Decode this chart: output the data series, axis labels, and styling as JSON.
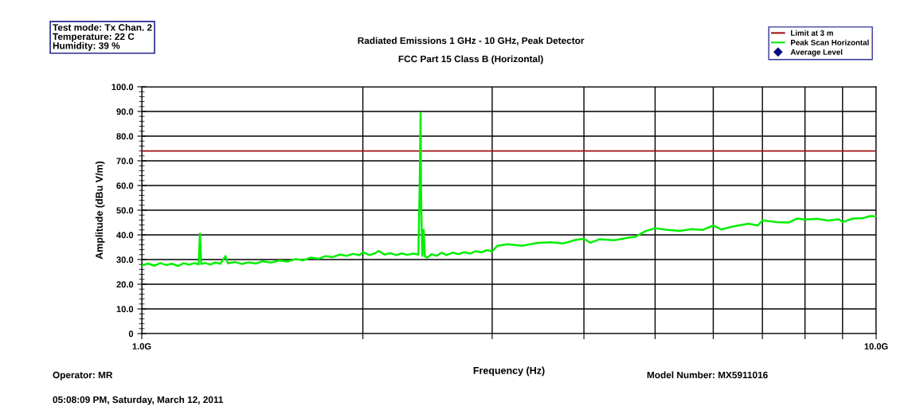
{
  "chart_data": {
    "type": "line",
    "title": "Radiated Emissions 1 GHz - 10 GHz, Peak Detector",
    "subtitle": "FCC Part 15 Class B (Horizontal)",
    "xlabel": "Frequency (Hz)",
    "ylabel": "Amplitude (dBu V/m)",
    "annotations": [
      "Test mode: Tx Chan. 2\nTemperature: 22 C\nHumidity: 39 %",
      "Operator: MR",
      "05:08:09 PM, Saturday, March 12, 2011",
      "Model Number: MX5911016"
    ],
    "log": "x",
    "grid": true,
    "legend": "top right",
    "line_style": "solid",
    "xlim": [
      1.0,
      10.0
    ],
    "xticks": [
      {
        "value": 1.0,
        "label": "1.0G"
      },
      {
        "value": 2.0,
        "label": null
      },
      {
        "value": 3.0,
        "label": null
      },
      {
        "value": 4.0,
        "label": null
      },
      {
        "value": 5.0,
        "label": null
      },
      {
        "value": 6.0,
        "label": null
      },
      {
        "value": 7.0,
        "label": null
      },
      {
        "value": 8.0,
        "label": null
      },
      {
        "value": 9.0,
        "label": null
      },
      {
        "value": 10.0,
        "label": "10.0G"
      }
    ],
    "ylim": [
      0,
      100
    ],
    "yticks": [
      0,
      {
        "value": 10,
        "label": "10.0"
      },
      {
        "value": 20,
        "label": "20.0"
      },
      {
        "value": 30,
        "label": "30.0"
      },
      {
        "value": 40,
        "label": "40.0"
      },
      {
        "value": 50,
        "label": "50.0"
      },
      {
        "value": 60,
        "label": "60.0"
      },
      {
        "value": 70,
        "label": "70.0"
      },
      {
        "value": 80,
        "label": "80.0"
      },
      {
        "value": 90,
        "label": "90.0"
      },
      {
        "value": 100,
        "label": "100.0"
      }
    ],
    "ref_lines": [
      {
        "axis": "y",
        "value": 74,
        "label": "Limit at 3 m",
        "color": "#a01010",
        "line_style": "solid"
      }
    ],
    "series": [
      {
        "name": "Peak Scan Horizontal",
        "color": "#00f000",
        "x": [
          1.0,
          1.02,
          1.04,
          1.06,
          1.08,
          1.1,
          1.12,
          1.14,
          1.16,
          1.18,
          1.195,
          1.2,
          1.205,
          1.22,
          1.24,
          1.26,
          1.28,
          1.3,
          1.31,
          1.34,
          1.37,
          1.4,
          1.43,
          1.46,
          1.5,
          1.54,
          1.58,
          1.62,
          1.66,
          1.7,
          1.74,
          1.78,
          1.82,
          1.86,
          1.9,
          1.94,
          1.98,
          2.0,
          2.04,
          2.08,
          2.1,
          2.14,
          2.18,
          2.22,
          2.26,
          2.3,
          2.34,
          2.38,
          2.39,
          2.397,
          2.4,
          2.405,
          2.41,
          2.42,
          2.43,
          2.45,
          2.48,
          2.52,
          2.56,
          2.6,
          2.65,
          2.7,
          2.75,
          2.8,
          2.85,
          2.9,
          2.95,
          3.0,
          3.05,
          3.15,
          3.3,
          3.45,
          3.6,
          3.75,
          3.9,
          4.0,
          4.08,
          4.2,
          4.4,
          4.6,
          4.7,
          4.85,
          5.0,
          5.2,
          5.4,
          5.6,
          5.8,
          6.0,
          6.15,
          6.4,
          6.7,
          6.9,
          7.0,
          7.3,
          7.6,
          7.8,
          8.0,
          8.3,
          8.6,
          8.9,
          9.0,
          9.3,
          9.6,
          9.8,
          10.0
        ],
        "values": [
          27.6,
          28.4,
          27.5,
          28.6,
          27.8,
          28.3,
          27.4,
          28.5,
          27.9,
          28.6,
          28.0,
          40.5,
          28.2,
          28.6,
          28.0,
          28.8,
          28.3,
          31.4,
          28.5,
          29.0,
          28.2,
          28.9,
          28.4,
          29.3,
          28.8,
          29.6,
          29.2,
          30.2,
          29.7,
          30.8,
          30.3,
          31.4,
          31.0,
          32.0,
          31.5,
          32.3,
          31.8,
          33.0,
          31.8,
          32.6,
          33.5,
          32.0,
          32.6,
          31.8,
          32.5,
          31.9,
          32.4,
          32.0,
          58.8,
          89.3,
          58.0,
          42.7,
          31.5,
          42.0,
          31.2,
          30.8,
          32.2,
          31.5,
          32.8,
          31.8,
          32.8,
          32.2,
          33.0,
          32.4,
          33.4,
          32.9,
          33.8,
          33.3,
          35.6,
          36.2,
          35.6,
          36.7,
          37.0,
          36.5,
          38.0,
          38.4,
          36.8,
          38.2,
          37.8,
          38.9,
          39.2,
          41.5,
          42.7,
          42.0,
          41.6,
          42.3,
          42.0,
          43.8,
          42.2,
          43.5,
          44.5,
          43.8,
          45.9,
          45.2,
          45.0,
          46.6,
          46.2,
          46.5,
          45.8,
          46.3,
          45.2,
          46.6,
          46.8,
          47.6,
          47.5
        ]
      },
      {
        "name": "Average Level",
        "color": "#0a0a80",
        "type": "scatter",
        "marker": "diamond"
      }
    ]
  }
}
